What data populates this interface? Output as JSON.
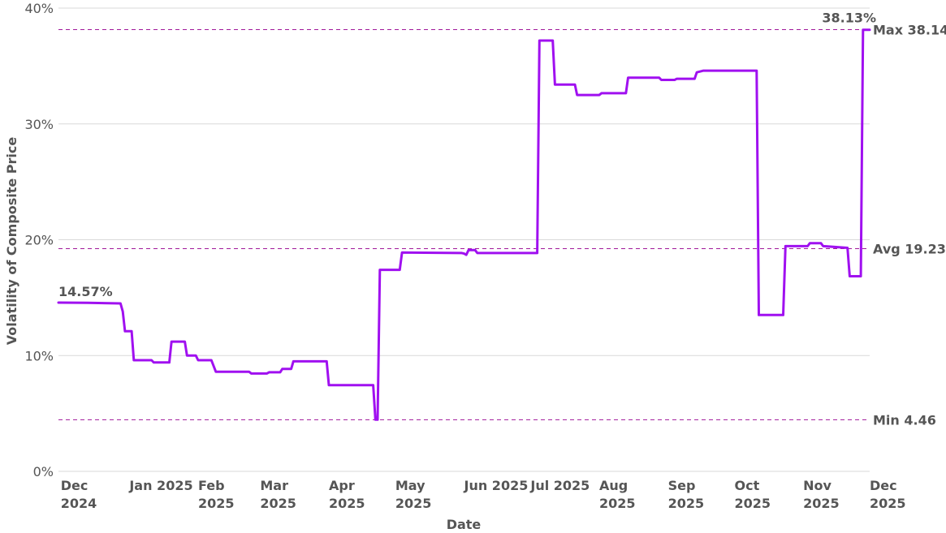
{
  "chart_data": {
    "type": "line",
    "xlabel": "Date",
    "ylabel": "Volatility of Composite Price",
    "x_range": [
      "2024-11-30",
      "2025-12-01"
    ],
    "ylim": [
      0,
      40
    ],
    "y_ticks": [
      0,
      10,
      20,
      30,
      40
    ],
    "y_tick_labels": [
      "0%",
      "10%",
      "20%",
      "30%",
      "40%"
    ],
    "x_ticks": [
      {
        "date": "2024-12-01",
        "line1": "Dec",
        "line2": "2024"
      },
      {
        "date": "2025-01-01",
        "line1": "Jan 2025",
        "line2": ""
      },
      {
        "date": "2025-02-01",
        "line1": "Feb",
        "line2": "2025"
      },
      {
        "date": "2025-03-01",
        "line1": "Mar",
        "line2": "2025"
      },
      {
        "date": "2025-04-01",
        "line1": "Apr",
        "line2": "2025"
      },
      {
        "date": "2025-05-01",
        "line1": "May",
        "line2": "2025"
      },
      {
        "date": "2025-06-01",
        "line1": "Jun 2025",
        "line2": ""
      },
      {
        "date": "2025-07-01",
        "line1": "Jul 2025",
        "line2": ""
      },
      {
        "date": "2025-08-01",
        "line1": "Aug",
        "line2": "2025"
      },
      {
        "date": "2025-09-01",
        "line1": "Sep",
        "line2": "2025"
      },
      {
        "date": "2025-10-01",
        "line1": "Oct",
        "line2": "2025"
      },
      {
        "date": "2025-11-01",
        "line1": "Nov",
        "line2": "2025"
      },
      {
        "date": "2025-12-01",
        "line1": "Dec",
        "line2": "2025"
      }
    ],
    "grid": true,
    "reference_lines": [
      {
        "value": 38.14,
        "label": "Max 38.14"
      },
      {
        "value": 19.23,
        "label": "Avg 19.23"
      },
      {
        "value": 4.46,
        "label": "Min 4.46"
      }
    ],
    "first_value_label": "14.57%",
    "last_value_label": "38.13%",
    "series_color": "#a010f0",
    "reference_color": "#a0189a",
    "series": [
      {
        "points": [
          [
            "2024-11-30",
            14.57
          ],
          [
            "2024-12-13",
            14.55
          ],
          [
            "2024-12-28",
            14.5
          ],
          [
            "2024-12-29",
            13.8
          ],
          [
            "2024-12-30",
            12.1
          ],
          [
            "2025-01-02",
            12.1
          ],
          [
            "2025-01-03",
            9.6
          ],
          [
            "2025-01-11",
            9.6
          ],
          [
            "2025-01-12",
            9.4
          ],
          [
            "2025-01-19",
            9.4
          ],
          [
            "2025-01-20",
            11.2
          ],
          [
            "2025-01-26",
            11.2
          ],
          [
            "2025-01-27",
            10.0
          ],
          [
            "2025-01-31",
            10.0
          ],
          [
            "2025-02-01",
            9.6
          ],
          [
            "2025-02-07",
            9.6
          ],
          [
            "2025-02-09",
            8.6
          ],
          [
            "2025-02-24",
            8.6
          ],
          [
            "2025-02-25",
            8.45
          ],
          [
            "2025-03-04",
            8.45
          ],
          [
            "2025-03-05",
            8.55
          ],
          [
            "2025-03-10",
            8.55
          ],
          [
            "2025-03-11",
            8.85
          ],
          [
            "2025-03-15",
            8.85
          ],
          [
            "2025-03-16",
            9.5
          ],
          [
            "2025-03-31",
            9.5
          ],
          [
            "2025-04-01",
            7.45
          ],
          [
            "2025-04-21",
            7.45
          ],
          [
            "2025-04-22",
            4.46
          ],
          [
            "2025-04-23",
            4.46
          ],
          [
            "2025-04-24",
            17.4
          ],
          [
            "2025-05-03",
            17.4
          ],
          [
            "2025-05-04",
            18.9
          ],
          [
            "2025-05-31",
            18.85
          ],
          [
            "2025-06-01",
            18.8
          ],
          [
            "2025-06-02",
            18.7
          ],
          [
            "2025-06-03",
            19.1
          ],
          [
            "2025-06-06",
            19.1
          ],
          [
            "2025-06-07",
            18.85
          ],
          [
            "2025-07-01",
            18.85
          ],
          [
            "2025-07-04",
            18.85
          ],
          [
            "2025-07-05",
            37.2
          ],
          [
            "2025-07-11",
            37.2
          ],
          [
            "2025-07-12",
            33.4
          ],
          [
            "2025-07-21",
            33.4
          ],
          [
            "2025-07-22",
            32.5
          ],
          [
            "2025-08-01",
            32.5
          ],
          [
            "2025-08-02",
            32.65
          ],
          [
            "2025-08-13",
            32.65
          ],
          [
            "2025-08-14",
            34.0
          ],
          [
            "2025-08-28",
            34.0
          ],
          [
            "2025-08-29",
            33.8
          ],
          [
            "2025-09-04",
            33.8
          ],
          [
            "2025-09-05",
            33.9
          ],
          [
            "2025-09-13",
            33.9
          ],
          [
            "2025-09-14",
            34.45
          ],
          [
            "2025-09-17",
            34.6
          ],
          [
            "2025-10-11",
            34.6
          ],
          [
            "2025-10-12",
            13.5
          ],
          [
            "2025-10-23",
            13.5
          ],
          [
            "2025-10-24",
            19.45
          ],
          [
            "2025-11-03",
            19.45
          ],
          [
            "2025-11-04",
            19.7
          ],
          [
            "2025-11-09",
            19.7
          ],
          [
            "2025-11-10",
            19.45
          ],
          [
            "2025-11-21",
            19.3
          ],
          [
            "2025-11-22",
            16.85
          ],
          [
            "2025-11-27",
            16.85
          ],
          [
            "2025-11-28",
            38.13
          ],
          [
            "2025-12-01",
            38.13
          ]
        ]
      }
    ]
  }
}
